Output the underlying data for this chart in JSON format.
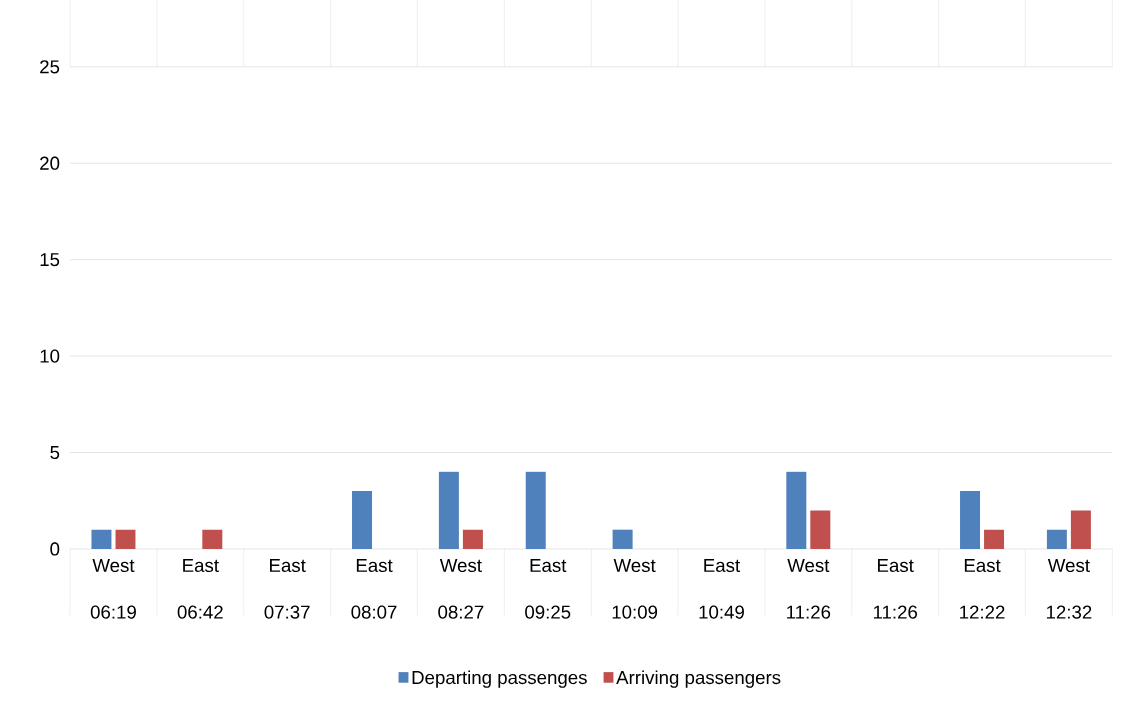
{
  "chart_data": {
    "type": "bar",
    "categories": [
      "West 06:19",
      "East 06:42",
      "East 07:37",
      "East 08:07",
      "West 08:27",
      "East 09:25",
      "West 10:09",
      "East 10:49",
      "West 11:26",
      "East 11:26",
      "East 12:22",
      "West 12:32"
    ],
    "series": [
      {
        "name": "Departing passenges",
        "color": "#4f81bd",
        "values": [
          1,
          0,
          0,
          3,
          4,
          4,
          1,
          0,
          4,
          0,
          3,
          1
        ]
      },
      {
        "name": "Arriving passengers",
        "color": "#c0504d",
        "values": [
          1,
          1,
          0,
          0,
          1,
          0,
          0,
          0,
          2,
          0,
          1,
          2
        ]
      }
    ],
    "ylim": [
      0,
      25
    ],
    "yticks": [
      0,
      5,
      10,
      15,
      20,
      25
    ],
    "grid": "y",
    "legend": "bottom"
  }
}
